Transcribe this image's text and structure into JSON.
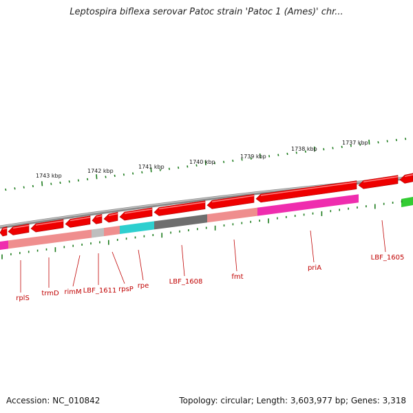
{
  "title": "Leptospira biflexa serovar Patoc strain 'Patoc 1 (Ames)' chr...",
  "footer": {
    "accession": "Accession: NC_010842",
    "summary": "Topology: circular; Length: 3,603,977 bp; Genes: 3,318"
  },
  "colors": {
    "backbone": "#8a8a8a",
    "gene_arrow": "#ee0000",
    "gene_arrow_forward": "#33cc33",
    "tick": "#1a7a1a",
    "label": "#c00000",
    "cog_magenta": "#ee22aa",
    "cog_pink": "#ee8888",
    "cog_gray": "#999999",
    "cog_cyan": "#22cccc",
    "cog_dark": "#666666"
  },
  "scale_labels": [
    "1743 kbp",
    "1742 kbp",
    "1741 kbp",
    "1740 kbp",
    "1739 kbp",
    "1738 kbp",
    "1737 kbp"
  ],
  "gene_labels": [
    "rplS",
    "trmD",
    "rimM",
    "LBF_1611",
    "rpsP",
    "rpe",
    "LBF_1608",
    "fmt",
    "priA",
    "LBF_1605"
  ]
}
